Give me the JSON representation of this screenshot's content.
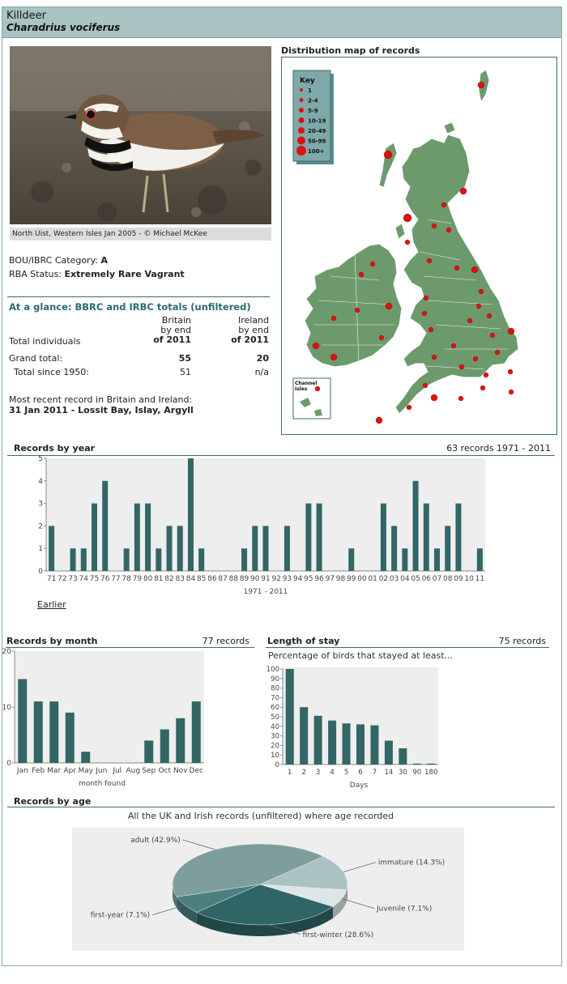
{
  "species": {
    "name": "Killdeer",
    "latin": "Charadrius vociferus"
  },
  "photo": {
    "caption": "North Uist, Western Isles Jan 2005 - © Michael McKee"
  },
  "status": {
    "category_label": "BOU/IBRC Category:",
    "category_value": "A",
    "rba_label": "RBA Status:",
    "rba_value": "Extremely Rare Vagrant"
  },
  "glance": {
    "title": "At a glance: BBRC and IRBC totals (unfiltered)",
    "col_britain": [
      "Britain",
      "by end",
      "of 2011"
    ],
    "col_ireland": [
      "Ireland",
      "by end",
      "of 2011"
    ],
    "row_total_label": "Total individuals",
    "grand_label": "Grand total:",
    "grand_britain": "55",
    "grand_ireland": "20",
    "since_label": "Total since 1950:",
    "since_britain": "51",
    "since_ireland": "n/a",
    "recent_label": "Most recent record in Britain and Ireland:",
    "recent_value": "31 Jan 2011  - Lossit Bay, Islay, Argyll"
  },
  "map": {
    "title": "Distribution map of records",
    "key_title": "Key",
    "key_items": [
      "1",
      "2-4",
      "5-9",
      "10-19",
      "20-49",
      "50-99",
      "100+"
    ],
    "channel_label": [
      "Channel",
      "Isles"
    ],
    "colors": {
      "sea": "#ffffff",
      "land": "#6d9a6d",
      "dot": "#dd1111",
      "key_bg": "#7fa8a8"
    }
  },
  "year_section": {
    "title": "Records by year",
    "summary": "63 records 1971 - 2011",
    "earlier_link": "Earlier"
  },
  "month_section": {
    "title": "Records by month",
    "summary": "77 records"
  },
  "stay_section": {
    "title": "Length of stay",
    "summary": "75 records",
    "subtitle": "Percentage of birds that stayed at least..."
  },
  "age_section": {
    "title": "Records by age",
    "subtitle": "All the UK and Irish records (unfiltered) where age recorded"
  },
  "chart_data": [
    {
      "type": "bar",
      "title": "Records by year",
      "xlabel": "1971 - 2011",
      "ylim": [
        0,
        5
      ],
      "yticks": [
        0,
        1,
        2,
        3,
        4,
        5
      ],
      "categories": [
        "71",
        "72",
        "73",
        "74",
        "75",
        "76",
        "77",
        "78",
        "79",
        "80",
        "81",
        "82",
        "83",
        "84",
        "85",
        "86",
        "87",
        "88",
        "89",
        "90",
        "91",
        "92",
        "93",
        "94",
        "95",
        "96",
        "97",
        "98",
        "99",
        "00",
        "01",
        "02",
        "03",
        "04",
        "05",
        "06",
        "07",
        "08",
        "09",
        "10",
        "11"
      ],
      "values": [
        2,
        0,
        1,
        1,
        3,
        4,
        0,
        1,
        3,
        3,
        1,
        2,
        2,
        5,
        1,
        0,
        0,
        0,
        1,
        2,
        2,
        0,
        2,
        0,
        3,
        3,
        0,
        0,
        1,
        0,
        0,
        3,
        2,
        1,
        4,
        3,
        1,
        2,
        3,
        0,
        1
      ]
    },
    {
      "type": "bar",
      "title": "Records by month",
      "xlabel": "month found",
      "ylim": [
        0,
        20
      ],
      "yticks": [
        0,
        10,
        20
      ],
      "categories": [
        "Jan",
        "Feb",
        "Mar",
        "Apr",
        "May",
        "Jun",
        "Jul",
        "Aug",
        "Sep",
        "Oct",
        "Nov",
        "Dec"
      ],
      "values": [
        15,
        11,
        11,
        9,
        2,
        0,
        0,
        0,
        4,
        6,
        8,
        11
      ]
    },
    {
      "type": "bar",
      "title": "Length of stay",
      "xlabel": "Days",
      "ylim": [
        0,
        100
      ],
      "yticks": [
        0,
        10,
        20,
        30,
        40,
        50,
        60,
        70,
        80,
        90,
        100
      ],
      "categories": [
        "1",
        "2",
        "3",
        "4",
        "5",
        "6",
        "7",
        "14",
        "30",
        "90",
        "180"
      ],
      "values": [
        100,
        60,
        51,
        46,
        43,
        42,
        41,
        25,
        17,
        1,
        1
      ]
    },
    {
      "type": "pie",
      "title": "Records by age",
      "labels": [
        "adult (42.9%)",
        "immature (14.3%)",
        "Juvenile (7.1%)",
        "first-winter (28.6%)",
        "first-year (7.1%)"
      ],
      "values": [
        42.9,
        14.3,
        7.1,
        28.6,
        7.1
      ],
      "colors": [
        "#7e9e9e",
        "#aac2c2",
        "#dde6e6",
        "#2f6565",
        "#4d7f7f"
      ]
    }
  ]
}
